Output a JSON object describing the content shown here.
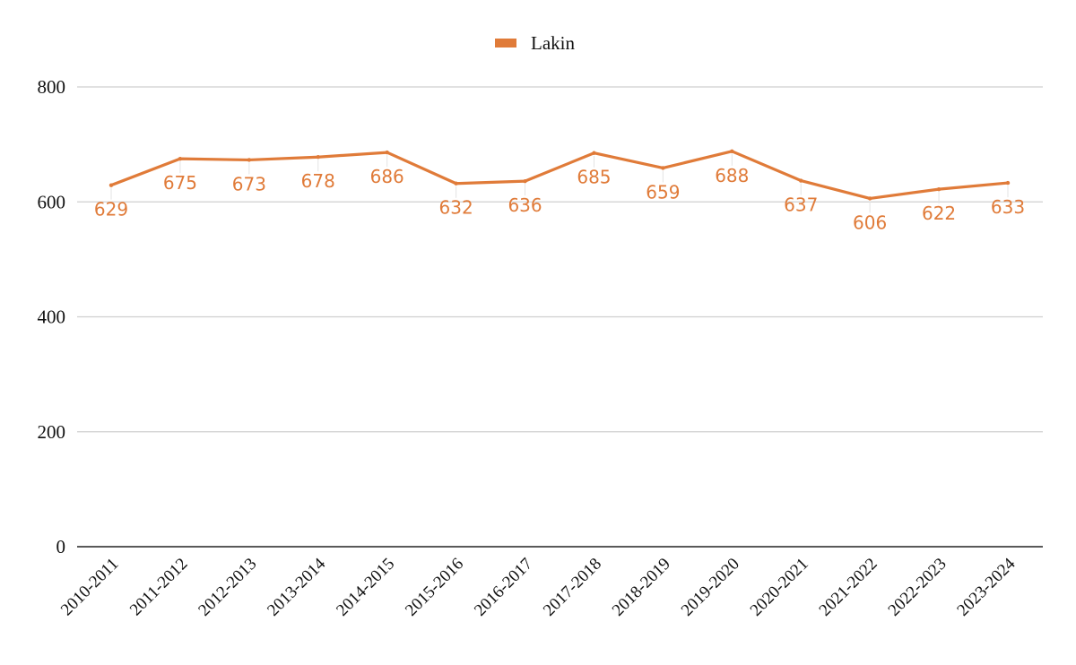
{
  "chart_data": {
    "type": "line",
    "title": "",
    "xlabel": "",
    "ylabel": "",
    "ylim": [
      0,
      800
    ],
    "yticks": [
      0,
      200,
      400,
      600,
      800
    ],
    "grid": true,
    "legend_position": "top-center",
    "categories": [
      "2010-2011",
      "2011-2012",
      "2012-2013",
      "2013-2014",
      "2014-2015",
      "2015-2016",
      "2016-2017",
      "2017-2018",
      "2018-2019",
      "2019-2020",
      "2020-2021",
      "2021-2022",
      "2022-2023",
      "2023-2024"
    ],
    "series": [
      {
        "name": "Lakin",
        "color": "#e07b39",
        "values": [
          629,
          675,
          673,
          678,
          686,
          632,
          636,
          685,
          659,
          688,
          637,
          606,
          622,
          633
        ],
        "label_placement": [
          "below",
          "below",
          "below",
          "below",
          "below",
          "below",
          "below",
          "below",
          "below",
          "below",
          "below",
          "below",
          "below",
          "below"
        ]
      }
    ]
  }
}
